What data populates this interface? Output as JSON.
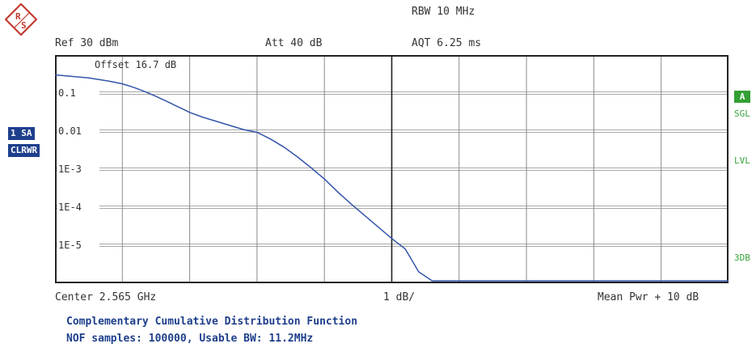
{
  "header": {
    "rbw": "RBW 10 MHz",
    "ref": "Ref  30 dBm",
    "att": "Att  40 dB",
    "aqt": "AQT 6.25 ms"
  },
  "plot": {
    "offset": "Offset  16.7 dB",
    "y_tick_labels": [
      "0.1",
      "0.01",
      "1E-3",
      "1E-4",
      "1E-5"
    ],
    "trace_color": "#3355aa"
  },
  "left_panel": {
    "sa_badge": "1 SA",
    "clrwr_badge": "CLRWR"
  },
  "right_panel": {
    "trace_badge": "A",
    "sgl": "SGL",
    "lvl": "LVL",
    "db3": "3DB"
  },
  "footer": {
    "center": "Center 2.565 GHz",
    "scale": "1 dB/",
    "mean_pwr": "Mean Pwr + 10 dB",
    "title": "Complementary Cumulative Distribution Function",
    "subtitle": "NOF samples: 100000, Usable BW:  11.2MHz"
  },
  "colors": {
    "accent_blue": "#1e3f8c",
    "status_green": "#3aa33a",
    "logo_red": "#c23b2f"
  },
  "icons": {
    "logo": "rohde-schwarz-logo-icon"
  },
  "chart_data": {
    "type": "line",
    "x": [
      0,
      0.1,
      0.2,
      0.3,
      0.4,
      0.5,
      0.6,
      0.7,
      0.8,
      0.9,
      1.0,
      1.1,
      1.2,
      1.3,
      1.4,
      1.5,
      1.6,
      1.7,
      1.8,
      1.9,
      2.0,
      2.2,
      2.4,
      2.6,
      2.8,
      3.0,
      3.2,
      3.4,
      3.6,
      3.8,
      4.0,
      4.2,
      4.4,
      4.6,
      4.8,
      5.0,
      5.2,
      5.4,
      5.6,
      5.8,
      6.0,
      6.2,
      6.4,
      6.6,
      6.8,
      7.0,
      7.2,
      7.4,
      7.6,
      7.8,
      8.0,
      8.2,
      8.4,
      8.6,
      8.8,
      9.0,
      9.2,
      9.4,
      9.6,
      9.8,
      10.0
    ],
    "values": [
      0.3,
      0.29,
      0.28,
      0.27,
      0.26,
      0.25,
      0.235,
      0.22,
      0.205,
      0.19,
      0.175,
      0.155,
      0.135,
      0.115,
      0.098,
      0.082,
      0.068,
      0.056,
      0.046,
      0.038,
      0.031,
      0.023,
      0.018,
      0.014,
      0.011,
      0.0093,
      0.0062,
      0.0038,
      0.0021,
      0.0011,
      0.00055,
      0.00025,
      0.00012,
      6e-05,
      3e-05,
      1.5e-05,
      8e-06,
      2e-06,
      5e-07,
      5e-07,
      5e-07,
      5e-07,
      5e-07,
      5e-07,
      5e-07,
      5e-07,
      5e-07,
      5e-07,
      5e-07,
      5e-07,
      5e-07,
      5e-07,
      5e-07,
      5e-07,
      5e-07,
      5e-07,
      5e-07,
      5e-07,
      5e-07,
      5e-07,
      5e-07
    ],
    "xlim": [
      0,
      10
    ],
    "ylim_log10": [
      -6,
      0
    ],
    "yscale": "log",
    "grid": true
  }
}
